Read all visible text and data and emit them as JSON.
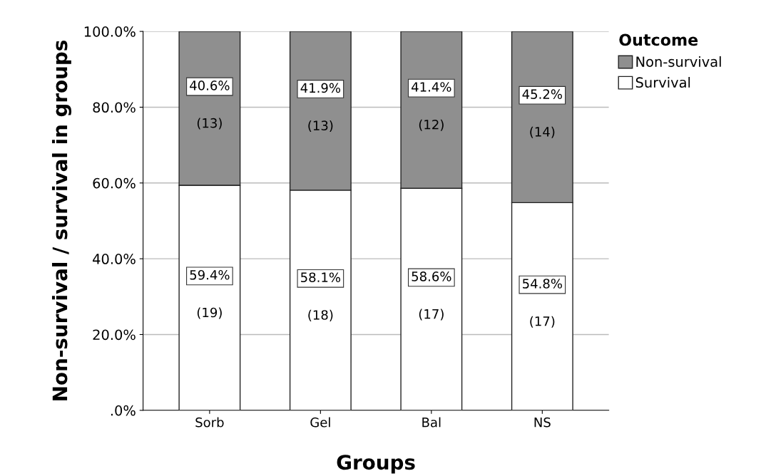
{
  "chart_data": {
    "type": "bar",
    "stacked": true,
    "xlabel": "Groups",
    "ylabel": "Non-survival / survival in groups",
    "legend_title": "Outcome",
    "legend": "top right",
    "grid": "y",
    "categories": [
      "Sorb",
      "Gel",
      "Bal",
      "NS"
    ],
    "ylim": [
      0,
      100
    ],
    "yticks": [
      {
        "value": 0,
        "label": ".0%"
      },
      {
        "value": 20,
        "label": "20.0%"
      },
      {
        "value": 40,
        "label": "40.0%"
      },
      {
        "value": 60,
        "label": "60.0%"
      },
      {
        "value": 80,
        "label": "80.0%"
      },
      {
        "value": 100,
        "label": "100.0%"
      }
    ],
    "series": [
      {
        "name": "Survival",
        "color": "#ffffff",
        "values": [
          59.4,
          58.1,
          58.6,
          54.8
        ],
        "value_labels": [
          "59.4%\n(19)",
          "58.1%\n(18)",
          "58.6%\n(17)",
          "54.8%\n(17)"
        ]
      },
      {
        "name": "Non-survival",
        "color": "#8f8f8f",
        "values": [
          40.6,
          41.9,
          41.4,
          45.2
        ],
        "value_labels": [
          "40.6%\n(13)",
          "41.9%\n(13)",
          "41.4%\n(12)",
          "45.2%\n(14)"
        ]
      }
    ]
  }
}
